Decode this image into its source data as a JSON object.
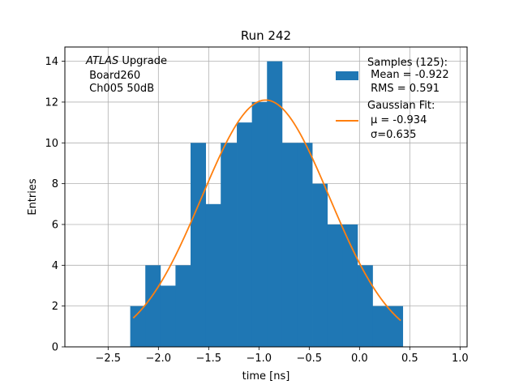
{
  "chart_data": {
    "type": "bar",
    "title": "Run 242",
    "xlabel": "time [ns]",
    "ylabel": "Entries",
    "xlim": [
      -2.93,
      1.07
    ],
    "ylim": [
      0,
      14.7
    ],
    "grid": true,
    "xticks": [
      -2.5,
      -2.0,
      -1.5,
      -1.0,
      -0.5,
      0.0,
      0.5,
      1.0
    ],
    "xtick_labels": [
      "−2.5",
      "−2.0",
      "−1.5",
      "−1.0",
      "−0.5",
      "0.0",
      "0.5",
      "1.0"
    ],
    "yticks": [
      0,
      2,
      4,
      6,
      8,
      10,
      12,
      14
    ],
    "ytick_labels": [
      "0",
      "2",
      "4",
      "6",
      "8",
      "10",
      "12",
      "14"
    ],
    "bin_edges": [
      -2.28,
      -2.13,
      -1.98,
      -1.83,
      -1.68,
      -1.53,
      -1.38,
      -1.22,
      -1.07,
      -0.92,
      -0.77,
      -0.62,
      -0.47,
      -0.32,
      -0.17,
      -0.02,
      0.13,
      0.28,
      0.43
    ],
    "counts": [
      2,
      4,
      3,
      4,
      10,
      7,
      10,
      11,
      12,
      14,
      10,
      10,
      8,
      6,
      6,
      4,
      2,
      2
    ],
    "histogram_color": "#1f77b4",
    "fit": {
      "mu": -0.934,
      "sigma": 0.635,
      "amplitude": 12.1,
      "x_range": [
        -2.25,
        0.41
      ],
      "color": "#ff7f0e"
    },
    "legend": {
      "position": "upper-right",
      "entries": [
        {
          "lines": [
            "Samples (125):",
            " Mean = -0.922",
            " RMS = 0.591"
          ],
          "color": "#1f77b4",
          "kind": "patch"
        },
        {
          "lines": [
            "Gaussian Fit:"
          ],
          "mu_line": "μ = -0.934",
          "sigma_line": "σ=0.635",
          "color": "#ff7f0e",
          "kind": "line"
        }
      ]
    },
    "annotation": {
      "position": "upper-left",
      "atlas": "ATLAS",
      "atlas_suffix": " Upgrade",
      "line2": " Board260",
      "line3": " Ch005 50dB"
    }
  }
}
